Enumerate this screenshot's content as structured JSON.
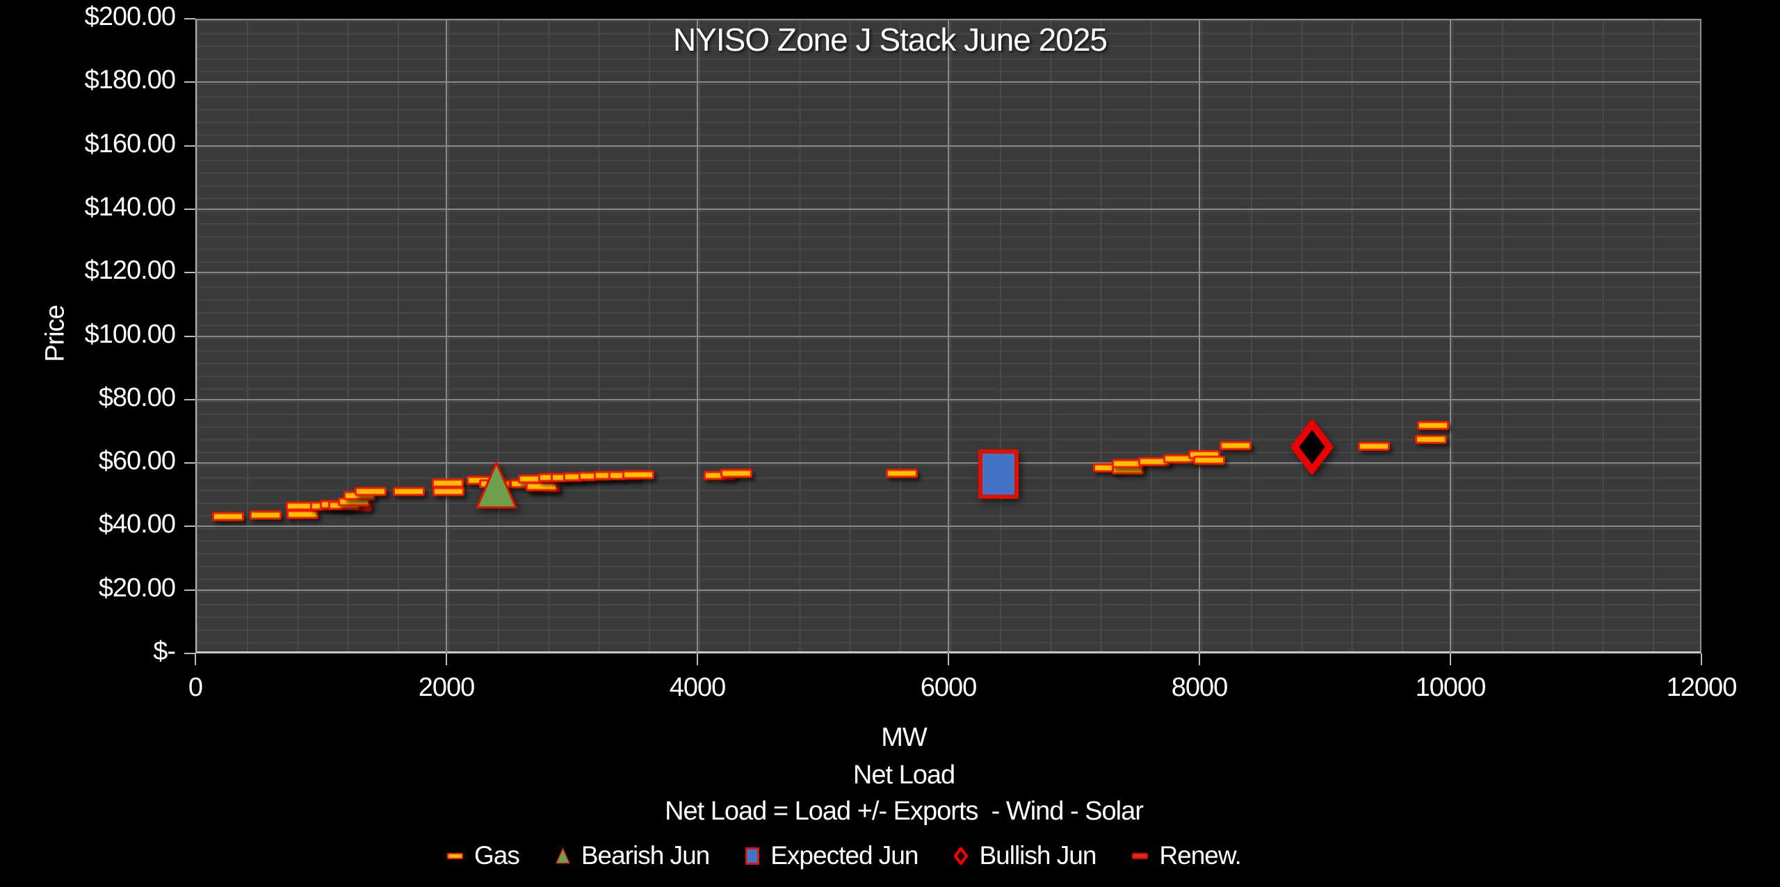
{
  "chart_data": {
    "type": "scatter",
    "title": "NYISO Zone J Stack June 2025",
    "x_axis": {
      "label_lines": [
        "MW",
        "Net Load",
        "Net Load = Load +/- Exports  - Wind - Solar"
      ],
      "min": 0,
      "max": 12000,
      "major_unit": 2000,
      "minor_unit": 400,
      "ticks": [
        {
          "v": 0,
          "label": "0"
        },
        {
          "v": 2000,
          "label": "2000"
        },
        {
          "v": 4000,
          "label": "4000"
        },
        {
          "v": 6000,
          "label": "6000"
        },
        {
          "v": 8000,
          "label": "8000"
        },
        {
          "v": 10000,
          "label": "10000"
        },
        {
          "v": 12000,
          "label": "12000"
        }
      ]
    },
    "y_axis": {
      "label": "Price",
      "min": 0,
      "max": 200,
      "major_unit": 20,
      "minor_unit": 4,
      "ticks": [
        {
          "v": 200,
          "label": "$200.00"
        },
        {
          "v": 180,
          "label": "$180.00"
        },
        {
          "v": 160,
          "label": "$160.00"
        },
        {
          "v": 140,
          "label": "$140.00"
        },
        {
          "v": 120,
          "label": "$120.00"
        },
        {
          "v": 100,
          "label": "$100.00"
        },
        {
          "v": 80,
          "label": "$80.00"
        },
        {
          "v": 60,
          "label": "$60.00"
        },
        {
          "v": 40,
          "label": "$40.00"
        },
        {
          "v": 20,
          "label": "$20.00"
        },
        {
          "v": 0,
          "label": "$-"
        }
      ]
    },
    "legend_position": "bottom",
    "legend": [
      "Gas",
      "Bearish Jun",
      "Expected Jun",
      "Bullish Jun",
      "Renew."
    ],
    "series": [
      {
        "name": "Renew.",
        "marker": "dash",
        "fill": "#E8251A",
        "border": "#C41200",
        "points": [
          [
            1280,
            46.2
          ],
          [
            2780,
            52.2
          ]
        ]
      },
      {
        "name": "Gas",
        "marker": "dash",
        "fill": "#FFC000",
        "border": "#F61B00",
        "points": [
          [
            260,
            43.2
          ],
          [
            560,
            43.5
          ],
          [
            850,
            46.4
          ],
          [
            855,
            43.8
          ],
          [
            1040,
            46.5
          ],
          [
            1120,
            46.9
          ],
          [
            1185,
            46.7
          ],
          [
            1265,
            47.8
          ],
          [
            1305,
            49.8
          ],
          [
            1395,
            51.1
          ],
          [
            1700,
            51.1
          ],
          [
            2010,
            53.7
          ],
          [
            2015,
            51.1
          ],
          [
            2290,
            54.6
          ],
          [
            2390,
            53.4
          ],
          [
            2630,
            53.4
          ],
          [
            2700,
            54.9
          ],
          [
            2760,
            52.5
          ],
          [
            2860,
            55.4
          ],
          [
            2960,
            55.5
          ],
          [
            3060,
            55.7
          ],
          [
            3180,
            55.8
          ],
          [
            3300,
            56.0
          ],
          [
            3420,
            56.1
          ],
          [
            3530,
            56.2
          ],
          [
            4180,
            56.1
          ],
          [
            4310,
            56.7
          ],
          [
            5630,
            56.8
          ],
          [
            7280,
            58.4
          ],
          [
            7430,
            57.9
          ],
          [
            7430,
            59.9
          ],
          [
            7640,
            60.4
          ],
          [
            7840,
            61.4
          ],
          [
            8040,
            62.6
          ],
          [
            8080,
            60.9
          ],
          [
            8290,
            65.6
          ],
          [
            9390,
            65.2
          ],
          [
            9845,
            67.5
          ],
          [
            9860,
            71.9
          ]
        ]
      },
      {
        "name": "Bearish Jun",
        "marker": "triangle",
        "fill": "#6D9F4D",
        "border": "#E01000",
        "points": [
          [
            2400,
            53
          ]
        ]
      },
      {
        "name": "Expected Jun",
        "marker": "square",
        "fill": "#4472C4",
        "border": "#E01000",
        "points": [
          [
            6400,
            56.5
          ]
        ]
      },
      {
        "name": "Bullish Jun",
        "marker": "diamond",
        "fill": "#000000",
        "border": "#EE0000",
        "points": [
          [
            8900,
            65
          ]
        ]
      }
    ]
  }
}
